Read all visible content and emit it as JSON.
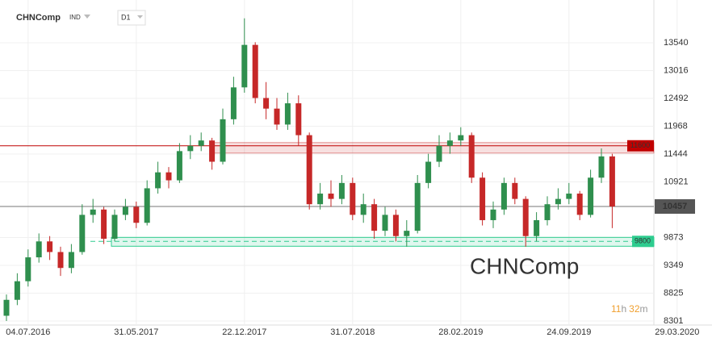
{
  "header": {
    "symbol": "CHNComp",
    "market": "IND",
    "timeframe": "D1"
  },
  "chart_data": {
    "type": "candlestick",
    "categories": [
      null,
      null,
      "04.07.2016",
      null,
      null,
      null,
      null,
      null,
      null,
      null,
      null,
      null,
      "31.05.2017",
      null,
      null,
      null,
      null,
      null,
      null,
      null,
      null,
      null,
      "22.12.2017",
      null,
      null,
      null,
      null,
      null,
      null,
      null,
      null,
      null,
      "31.07.2018",
      null,
      null,
      null,
      null,
      null,
      null,
      null,
      null,
      null,
      "28.02.2019",
      null,
      null,
      null,
      null,
      null,
      null,
      null,
      null,
      null,
      "24.09.2019",
      null,
      null,
      null,
      null,
      null,
      null,
      null,
      null,
      null,
      "29.03.2020"
    ],
    "open": [
      8400,
      8700,
      9050,
      9500,
      9800,
      9600,
      9300,
      9600,
      10300,
      10400,
      9850,
      10300,
      10450,
      10150,
      10800,
      11100,
      10950,
      11500,
      11600,
      11700,
      11300,
      12100,
      12700,
      13500,
      12500,
      12300,
      12000,
      12400,
      11800,
      10500,
      10700,
      10600,
      10900,
      10300,
      10500,
      10000,
      10300,
      9900,
      10000,
      10900,
      11300,
      11600,
      11700,
      11800,
      11000,
      10200,
      10400,
      10900,
      10600,
      9900,
      10200,
      10500,
      10600,
      10700,
      10300,
      11000,
      11400,
      null,
      null,
      null,
      null,
      null,
      null
    ],
    "high": [
      8800,
      9200,
      9650,
      9950,
      9900,
      9700,
      9750,
      10500,
      10600,
      10450,
      10400,
      10600,
      10550,
      10950,
      11300,
      11200,
      11650,
      11800,
      11850,
      11750,
      12300,
      12900,
      14000,
      13550,
      12800,
      12500,
      12600,
      12550,
      11850,
      10900,
      10950,
      11050,
      11000,
      10700,
      10600,
      10450,
      10400,
      10200,
      11050,
      11450,
      11800,
      11850,
      11950,
      11850,
      11100,
      10550,
      11000,
      11000,
      10650,
      10350,
      10650,
      10800,
      10900,
      10750,
      11150,
      11550,
      11450,
      null,
      null,
      null,
      null,
      null,
      null
    ],
    "low": [
      8301,
      8600,
      8950,
      9400,
      9450,
      9150,
      9200,
      9550,
      10150,
      9750,
      9800,
      10200,
      10050,
      10100,
      10700,
      10800,
      10900,
      11350,
      11500,
      11150,
      11250,
      12000,
      12600,
      12400,
      12100,
      11900,
      11900,
      11600,
      10400,
      10400,
      10450,
      10500,
      10200,
      10150,
      9850,
      9900,
      9800,
      9700,
      9950,
      10800,
      11200,
      11450,
      11600,
      10900,
      10100,
      10050,
      10300,
      10500,
      9700,
      9800,
      10100,
      10400,
      10500,
      10200,
      10250,
      10900,
      10050,
      null,
      null,
      null,
      null,
      null,
      null
    ],
    "close": [
      8700,
      9050,
      9500,
      9800,
      9600,
      9300,
      9600,
      10300,
      10400,
      9850,
      10300,
      10450,
      10150,
      10800,
      11100,
      10950,
      11500,
      11600,
      11700,
      11300,
      12100,
      12700,
      13500,
      12500,
      12300,
      12000,
      12400,
      11800,
      10500,
      10700,
      10600,
      10900,
      10300,
      10500,
      10000,
      10300,
      9900,
      10000,
      10900,
      11300,
      11600,
      11700,
      11800,
      11000,
      10200,
      10400,
      10900,
      10600,
      9900,
      10200,
      10500,
      10600,
      10700,
      10300,
      11000,
      11400,
      10457,
      null,
      null,
      null,
      null,
      null,
      null
    ],
    "up_color": "#2f8f4e",
    "down_color": "#c62828",
    "ylim": [
      8195,
      14345
    ],
    "yticks": [
      8301,
      8825,
      9349,
      9873,
      10921,
      11444,
      11968,
      12492,
      13016,
      13540
    ],
    "grid": true,
    "levels": [
      {
        "value": 11600,
        "color": "#c00000"
      },
      {
        "value": 9800,
        "color": "#2ecc8f"
      }
    ],
    "last_price": 10457,
    "watermark": "CHNComp",
    "timer": {
      "hours": "11",
      "hours_unit": "h",
      "minutes": "32",
      "minutes_unit": "m"
    }
  }
}
